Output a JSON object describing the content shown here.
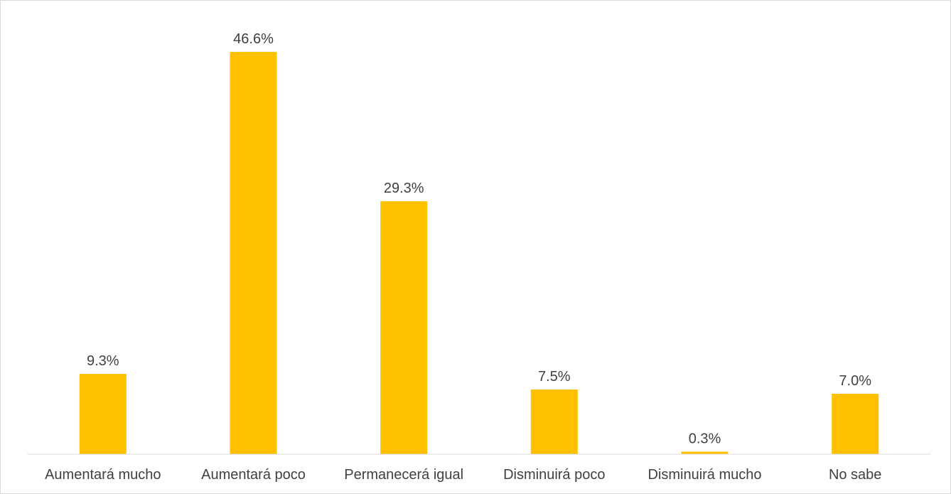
{
  "chart_data": {
    "type": "bar",
    "title": "",
    "xlabel": "",
    "ylabel": "",
    "categories": [
      "Aumentará mucho",
      "Aumentará poco",
      "Permanecerá igual",
      "Disminuirá poco",
      "Disminuirá mucho",
      "No sabe"
    ],
    "values": [
      9.3,
      46.6,
      29.3,
      7.5,
      0.3,
      7.0
    ],
    "data_labels": [
      "9.3%",
      "46.6%",
      "29.3%",
      "7.5%",
      "0.3%",
      "7.0%"
    ],
    "ylim": [
      0,
      46.6
    ],
    "grid": false,
    "legend": "none",
    "colors": {
      "bar": "#FFC000",
      "axis": "#d9d9d9",
      "text": "#404040"
    }
  }
}
